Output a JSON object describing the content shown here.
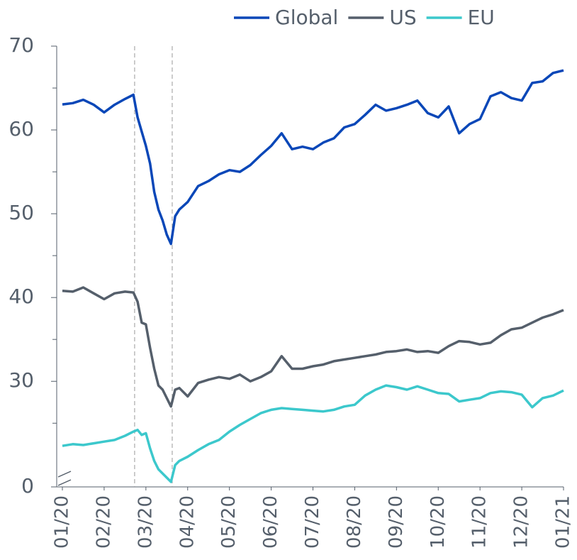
{
  "chart_data": {
    "type": "line",
    "x": [
      0,
      0.25,
      0.5,
      0.75,
      1,
      1.25,
      1.5,
      1.7,
      1.8,
      1.9,
      2,
      2.1,
      2.2,
      2.3,
      2.4,
      2.5,
      2.6,
      2.7,
      2.8,
      3,
      3.25,
      3.5,
      3.75,
      4,
      4.25,
      4.5,
      4.75,
      5,
      5.25,
      5.5,
      5.75,
      6,
      6.25,
      6.5,
      6.75,
      7,
      7.25,
      7.5,
      7.75,
      8,
      8.25,
      8.5,
      8.75,
      9,
      9.25,
      9.5,
      9.75,
      10,
      10.25,
      10.5,
      10.75,
      11,
      11.25,
      11.5,
      11.75,
      12
    ],
    "series": [
      {
        "name": "Global",
        "color": "#0a47b8",
        "values": [
          63.05,
          63.2,
          63.6,
          63.0,
          62.1,
          63.0,
          63.7,
          64.2,
          61.5,
          59.8,
          58.1,
          56,
          52.6,
          50.5,
          49.2,
          47.5,
          46.4,
          49.7,
          50.5,
          51.4,
          53.3,
          53.9,
          54.7,
          55.2,
          55.0,
          55.8,
          57.0,
          58.1,
          59.6,
          57.7,
          58.0,
          57.7,
          58.5,
          59.0,
          60.3,
          60.7,
          61.8,
          63.0,
          62.3,
          62.6,
          63.0,
          63.5,
          62.0,
          61.5,
          62.8,
          59.6,
          60.7,
          61.3,
          64.0,
          64.5,
          63.8,
          63.5,
          65.6,
          65.8,
          66.8,
          67.1
        ]
      },
      {
        "name": "US",
        "color": "#555f6b",
        "values": [
          40.8,
          40.7,
          41.2,
          40.5,
          39.8,
          40.5,
          40.7,
          40.6,
          39.5,
          37.0,
          36.8,
          34.0,
          31.5,
          29.5,
          29.0,
          28.0,
          27.0,
          29.0,
          29.2,
          28.2,
          29.8,
          30.2,
          30.5,
          30.3,
          30.8,
          30.0,
          30.5,
          31.2,
          33.0,
          31.5,
          31.5,
          31.8,
          32.0,
          32.4,
          32.6,
          32.8,
          33.0,
          33.2,
          33.5,
          33.6,
          33.8,
          33.5,
          33.6,
          33.4,
          34.2,
          34.8,
          34.7,
          34.4,
          34.6,
          35.5,
          36.2,
          36.4,
          37.0,
          37.6,
          38.0,
          38.5
        ]
      },
      {
        "name": "EU",
        "color": "#3cc8cc",
        "values": [
          22.3,
          22.5,
          22.4,
          22.6,
          22.8,
          23.0,
          23.5,
          24.0,
          24.2,
          23.6,
          23.8,
          22.0,
          20.5,
          19.5,
          19.0,
          18.5,
          18.0,
          20.0,
          20.5,
          21.0,
          21.8,
          22.5,
          23.0,
          24.0,
          24.8,
          25.5,
          26.2,
          26.6,
          26.8,
          26.7,
          26.6,
          26.5,
          26.4,
          26.6,
          27.0,
          27.2,
          28.3,
          29.0,
          29.5,
          29.3,
          29.0,
          29.4,
          29.0,
          28.6,
          28.5,
          27.6,
          27.8,
          28.0,
          28.6,
          28.8,
          28.7,
          28.4,
          26.9,
          28.0,
          28.3,
          28.9
        ]
      }
    ],
    "xlim": [
      0,
      12
    ],
    "xticks": [
      {
        "value": 0,
        "label": "01/20"
      },
      {
        "value": 1,
        "label": "02/20"
      },
      {
        "value": 2,
        "label": "03/20"
      },
      {
        "value": 3,
        "label": "04/20"
      },
      {
        "value": 4,
        "label": "05/20"
      },
      {
        "value": 5,
        "label": "06/20"
      },
      {
        "value": 6,
        "label": "07/20"
      },
      {
        "value": 7,
        "label": "08/20"
      },
      {
        "value": 8,
        "label": "09/20"
      },
      {
        "value": 9,
        "label": "10/20"
      },
      {
        "value": 10,
        "label": "11/20"
      },
      {
        "value": 11,
        "label": "12/20"
      },
      {
        "value": 12,
        "label": "01/21"
      }
    ],
    "ylim": [
      0,
      70
    ],
    "ybreak": [
      0,
      17.4
    ],
    "yticks": [
      0,
      30,
      40,
      50,
      60,
      70
    ],
    "yminorticks": [
      25,
      35,
      45,
      55,
      65
    ],
    "vlines": [
      1.73,
      2.63
    ],
    "legend": "top-right"
  }
}
